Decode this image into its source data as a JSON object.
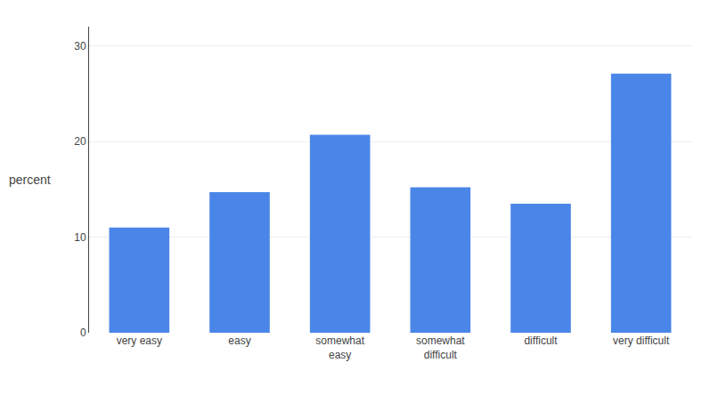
{
  "chart_data": {
    "type": "bar",
    "categories": [
      "very easy",
      "easy",
      "somewhat\neasy",
      "somewhat\ndifficult",
      "difficult",
      "very difficult"
    ],
    "values": [
      11.0,
      14.7,
      20.7,
      15.2,
      13.5,
      27.1
    ],
    "color": "#4a86e8",
    "ylabel": "percent",
    "ylim": [
      0,
      32
    ],
    "yticks": [
      0,
      10,
      20,
      30
    ],
    "grid": true
  }
}
